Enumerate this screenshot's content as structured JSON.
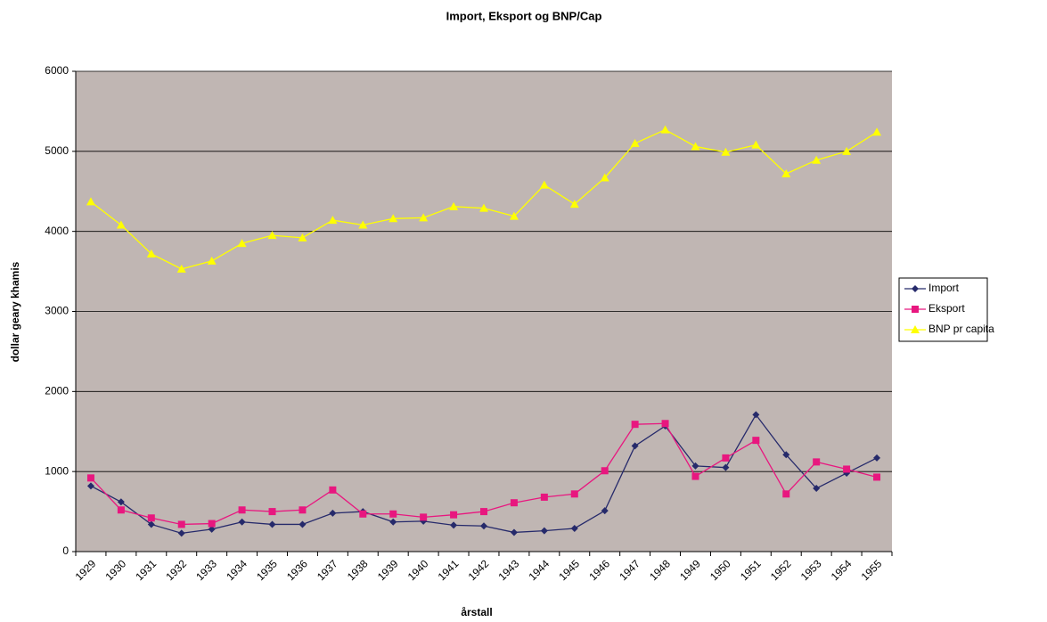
{
  "chart_data": {
    "type": "line",
    "title": "Import, Eksport og BNP/Cap",
    "x_label": "årstall",
    "y_label": "dollar geary khamis",
    "categories": [
      "1929",
      "1930",
      "1931",
      "1932",
      "1933",
      "1934",
      "1935",
      "1936",
      "1937",
      "1938",
      "1939",
      "1940",
      "1941",
      "1942",
      "1943",
      "1944",
      "1945",
      "1946",
      "1947",
      "1948",
      "1949",
      "1950",
      "1951",
      "1952",
      "1953",
      "1954",
      "1955"
    ],
    "series": [
      {
        "name": "Import",
        "color": "#262a6b",
        "marker": "diamond",
        "values": [
          820,
          620,
          340,
          230,
          280,
          370,
          340,
          340,
          480,
          500,
          370,
          380,
          330,
          320,
          240,
          260,
          290,
          510,
          1320,
          1570,
          1070,
          1050,
          1710,
          1210,
          790,
          980,
          1170
        ]
      },
      {
        "name": "Eksport",
        "color": "#e8177f",
        "marker": "square",
        "values": [
          920,
          520,
          420,
          340,
          350,
          520,
          500,
          520,
          770,
          470,
          470,
          430,
          460,
          500,
          610,
          680,
          720,
          1010,
          1590,
          1600,
          940,
          1170,
          1390,
          720,
          1120,
          1030,
          930
        ]
      },
      {
        "name": "BNP pr capita",
        "color": "#ffff00",
        "marker": "triangle",
        "values": [
          4370,
          4080,
          3720,
          3530,
          3630,
          3850,
          3950,
          3920,
          4140,
          4080,
          4160,
          4170,
          4310,
          4290,
          4190,
          4580,
          4340,
          4670,
          5100,
          5270,
          5060,
          4990,
          5080,
          4720,
          4890,
          5000,
          5240
        ]
      }
    ],
    "ylim": [
      0,
      6000
    ],
    "yticks": [
      0,
      1000,
      2000,
      3000,
      4000,
      5000,
      6000
    ],
    "grid": true,
    "legend": "right"
  }
}
